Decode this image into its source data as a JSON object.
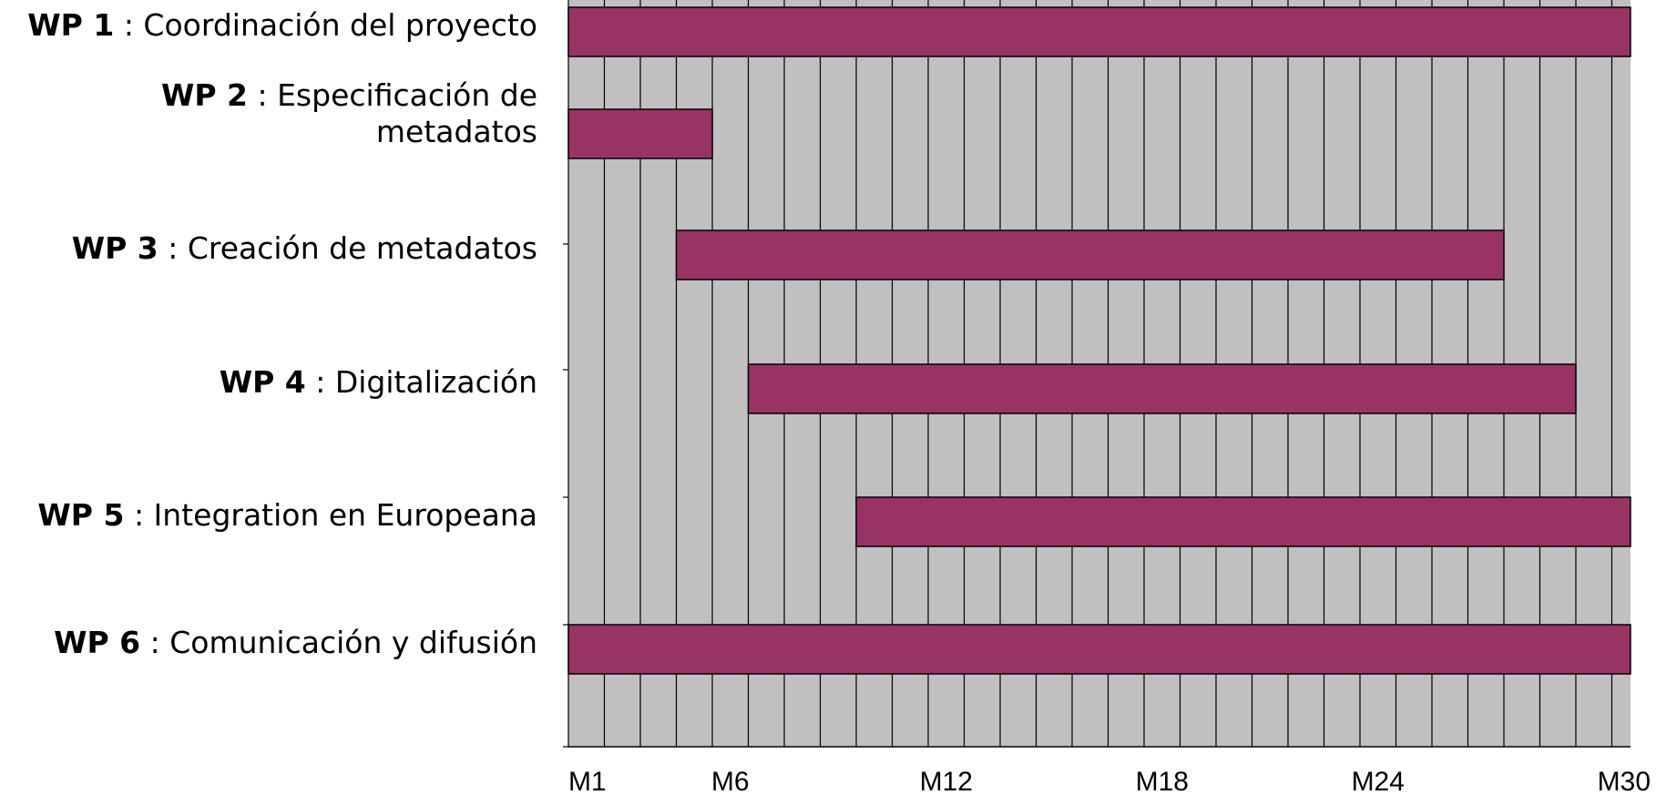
{
  "chart_data": {
    "type": "bar",
    "orientation": "horizontal-gantt",
    "x_unit": "month",
    "xlim": [
      1,
      30
    ],
    "grid": true,
    "legend": "none",
    "colors": {
      "plot_background": "#c0c0c0",
      "bar_fill": "#993366",
      "grid": "#000000"
    },
    "x_ticks": [
      {
        "value": 1,
        "label": "M1"
      },
      {
        "value": 6,
        "label": "M6"
      },
      {
        "value": 12,
        "label": "M12"
      },
      {
        "value": 18,
        "label": "M18"
      },
      {
        "value": 24,
        "label": "M24"
      },
      {
        "value": 30,
        "label": "M30"
      }
    ],
    "tasks": [
      {
        "code": "WP 1",
        "name": " : Coordinación del proyecto",
        "name_line2": "",
        "start": 1,
        "end": 30
      },
      {
        "code": "WP 2",
        "name": " : Especificación de",
        "name_line2": "metadatos",
        "start": 1,
        "end": 4
      },
      {
        "code": "WP 3",
        "name": " : Creación de metadatos",
        "name_line2": "",
        "start": 4,
        "end": 26
      },
      {
        "code": "WP 4",
        "name": " : Digitalización",
        "name_line2": "",
        "start": 6,
        "end": 28
      },
      {
        "code": "WP 5",
        "name": " : Integration en Europeana",
        "name_line2": "",
        "start": 9,
        "end": 30
      },
      {
        "code": "WP 6",
        "name": " : Comunicación y difusión",
        "name_line2": "",
        "start": 1,
        "end": 30
      }
    ]
  }
}
